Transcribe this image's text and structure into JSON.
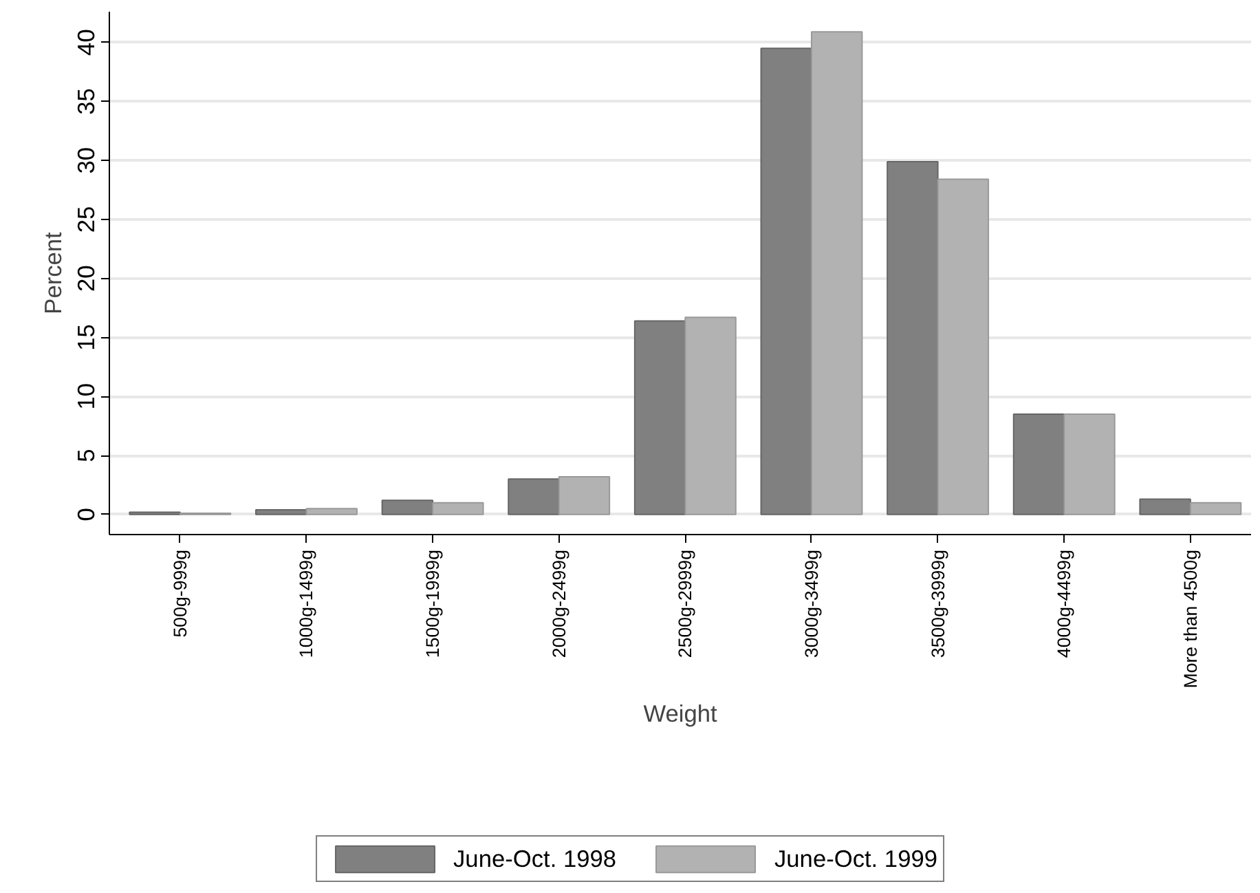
{
  "chart_data": {
    "type": "bar",
    "xlabel": "Weight",
    "ylabel": "Percent",
    "categories": [
      "500g-999g",
      "1000g-1499g",
      "1500g-1999g",
      "2000g-2499g",
      "2500g-2999g",
      "3000g-3499g",
      "3500g-3999g",
      "4000g-4499g",
      "More than 4500g"
    ],
    "series": [
      {
        "name": "June-Oct. 1998",
        "color": "#808080",
        "values": [
          0.2,
          0.4,
          1.2,
          3.0,
          16.4,
          39.5,
          29.9,
          8.5,
          1.3
        ]
      },
      {
        "name": "June-Oct. 1999",
        "color": "#b2b2b2",
        "values": [
          0.1,
          0.5,
          1.0,
          3.2,
          16.7,
          40.9,
          28.4,
          8.5,
          1.0
        ]
      }
    ],
    "ylim": [
      -1.7,
      42.6
    ],
    "yticks": [
      0,
      5,
      10,
      15,
      20,
      25,
      30,
      35,
      40
    ],
    "grid": "y",
    "legend": "bottom"
  }
}
